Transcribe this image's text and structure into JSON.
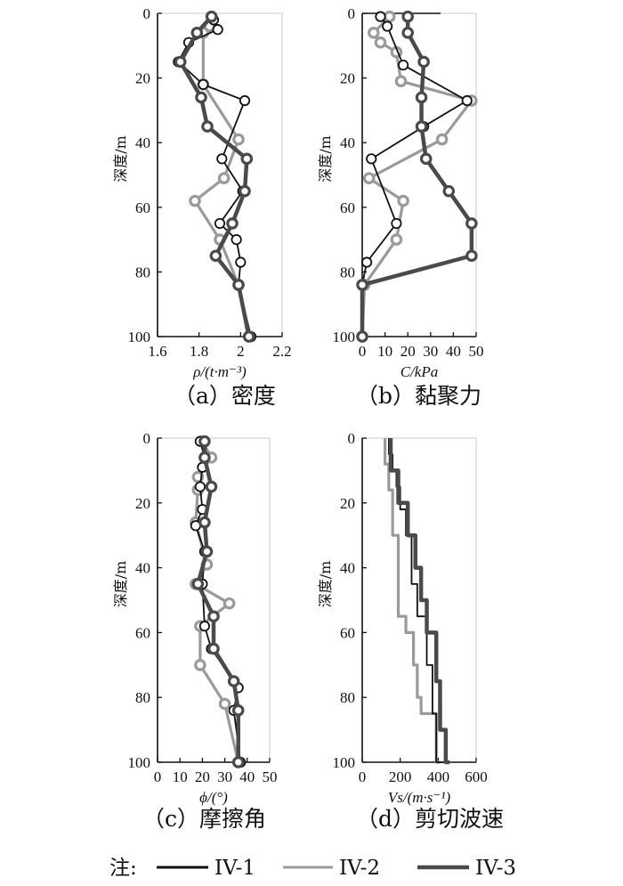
{
  "chart_data": [
    {
      "type": "line",
      "caption": "（a）密度",
      "xlabel": "ρ/(t·m⁻³)",
      "ylabel": "深度/m",
      "xlim": [
        1.6,
        2.2
      ],
      "ylim": [
        100,
        0
      ],
      "xticks": [
        "1.6",
        "1.8",
        "2",
        "2.2"
      ],
      "yticks": [
        "0",
        "20",
        "40",
        "60",
        "80",
        "100"
      ],
      "markers": true,
      "series": [
        {
          "name": "IV-1",
          "x": [
            1.87,
            1.89,
            1.75,
            1.7,
            1.82,
            2.02,
            1.91,
            2.01,
            1.9,
            1.98,
            2.0,
            1.99,
            2.05
          ],
          "y": [
            2,
            5,
            9,
            15,
            22,
            27,
            45,
            55,
            65,
            70,
            77,
            84,
            100
          ]
        },
        {
          "name": "IV-2",
          "x": [
            1.85,
            1.82,
            1.82,
            1.99,
            1.92,
            1.78,
            1.9,
            1.99,
            2.04
          ],
          "y": [
            4,
            6,
            22,
            39,
            51,
            58,
            70,
            84,
            100
          ]
        },
        {
          "name": "IV-3",
          "x": [
            1.86,
            1.79,
            1.71,
            1.81,
            1.84,
            2.03,
            2.02,
            1.96,
            1.88,
            1.99,
            2.04
          ],
          "y": [
            1,
            6,
            15,
            26,
            35,
            45,
            55,
            65,
            75,
            84,
            100
          ]
        }
      ]
    },
    {
      "type": "line",
      "caption": "（b）黏聚力",
      "xlabel": "C/kPa",
      "ylabel": "深度/m",
      "xlim": [
        0,
        50
      ],
      "ylim": [
        100,
        0
      ],
      "xticks": [
        "0",
        "10",
        "20",
        "30",
        "40",
        "50"
      ],
      "yticks": [
        "0",
        "20",
        "40",
        "60",
        "80",
        "100"
      ],
      "markers": true,
      "series": [
        {
          "name": "IV-1",
          "x": [
            8,
            11,
            18,
            46,
            27,
            4,
            15,
            2,
            0,
            0
          ],
          "y": [
            1,
            4,
            16,
            27,
            35,
            45,
            65,
            77,
            84,
            100
          ]
        },
        {
          "name": "IV-2",
          "x": [
            12,
            5,
            8,
            15,
            17,
            48,
            35,
            3,
            18,
            15,
            1,
            0
          ],
          "y": [
            1,
            6,
            9,
            12,
            21,
            27,
            39,
            51,
            58,
            70,
            84,
            100
          ]
        },
        {
          "name": "IV-3",
          "x": [
            20,
            20,
            27,
            26,
            26,
            28,
            38,
            48,
            48,
            0,
            0
          ],
          "y": [
            1,
            6,
            15,
            26,
            35,
            45,
            55,
            65,
            75,
            84,
            100
          ]
        }
      ]
    },
    {
      "type": "line",
      "caption": "（c）摩擦角",
      "xlabel": "ϕ/(°)",
      "ylabel": "深度/m",
      "xlim": [
        0,
        50
      ],
      "ylim": [
        100,
        0
      ],
      "xticks": [
        "0",
        "10",
        "20",
        "30",
        "40",
        "50"
      ],
      "yticks": [
        "0",
        "20",
        "40",
        "60",
        "80",
        "100"
      ],
      "markers": true,
      "series": [
        {
          "name": "IV-1",
          "x": [
            19,
            21,
            20,
            19,
            20,
            17,
            21,
            20,
            21,
            24,
            36,
            34,
            37
          ],
          "y": [
            1,
            6,
            9,
            15,
            22,
            27,
            35,
            45,
            58,
            65,
            77,
            84,
            100
          ]
        },
        {
          "name": "IV-2",
          "x": [
            20,
            24,
            18,
            18,
            17,
            22,
            17,
            32,
            19,
            19,
            30,
            36
          ],
          "y": [
            1,
            6,
            12,
            16,
            26,
            39,
            45,
            51,
            58,
            70,
            82,
            100
          ]
        },
        {
          "name": "IV-3",
          "x": [
            21,
            21,
            24,
            21,
            22,
            18,
            25,
            25,
            34,
            36,
            36
          ],
          "y": [
            1,
            6,
            15,
            26,
            35,
            45,
            55,
            65,
            75,
            84,
            100
          ]
        }
      ]
    },
    {
      "type": "line",
      "step": true,
      "caption": "（d）剪切波速",
      "xlabel": "Vs/(m·s⁻¹)",
      "ylabel": "深度/m",
      "xlim": [
        0,
        600
      ],
      "ylim": [
        100,
        0
      ],
      "xticks": [
        "0",
        "200",
        "400",
        "600"
      ],
      "yticks": [
        "0",
        "20",
        "40",
        "60",
        "80",
        "100"
      ],
      "markers": false,
      "series": [
        {
          "name": "IV-1",
          "x": [
            140,
            160,
            180,
            200,
            230,
            260,
            290,
            340,
            370,
            390,
            430
          ],
          "y": [
            0,
            5,
            10,
            15,
            22,
            30,
            45,
            55,
            70,
            85,
            100
          ]
        },
        {
          "name": "IV-2",
          "x": [
            120,
            140,
            160,
            190,
            230,
            270,
            290,
            310,
            390,
            410
          ],
          "y": [
            0,
            8,
            16,
            30,
            55,
            60,
            70,
            80,
            85,
            100
          ]
        },
        {
          "name": "IV-3",
          "x": [
            150,
            190,
            240,
            280,
            310,
            340,
            390,
            410,
            440,
            460
          ],
          "y": [
            0,
            10,
            20,
            30,
            40,
            50,
            60,
            75,
            90,
            100
          ]
        }
      ]
    }
  ],
  "legend": {
    "prefix": "注:",
    "items": [
      {
        "label": "IV-1",
        "color": "#111111"
      },
      {
        "label": "IV-2",
        "color": "#9a9a9a"
      },
      {
        "label": "IV-3",
        "color": "#4a4a4a"
      }
    ]
  },
  "colors": {
    "IV-1": "#111111",
    "IV-2": "#9a9a9a",
    "IV-3": "#4a4a4a"
  }
}
